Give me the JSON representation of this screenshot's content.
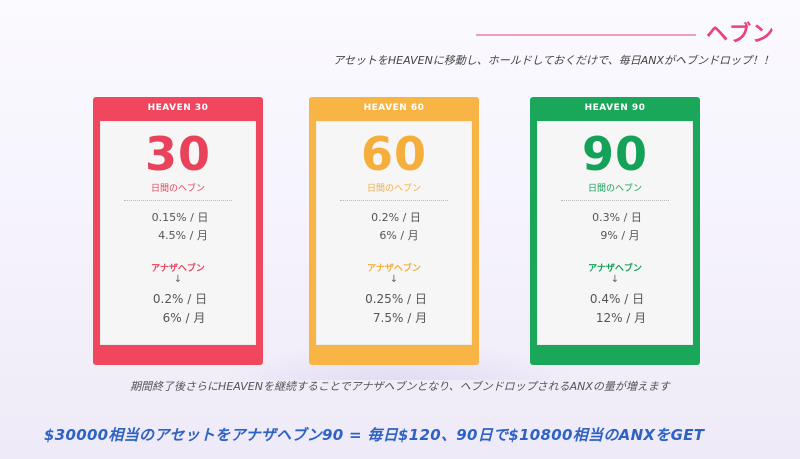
{
  "header": {
    "title": "ヘブン",
    "subtitle": "アセットをHEAVENに移動し、ホールドしておくだけで、毎日ANXがヘブンドロップ！！"
  },
  "colors": {
    "red": "#f0475f",
    "orange": "#f8b545",
    "green": "#1ba75a",
    "title_pink": "#e8437a",
    "cta_blue": "#2e63c4"
  },
  "plans": [
    {
      "name": "HEAVEN 30",
      "days": "30",
      "days_label": "日間のヘブン",
      "daily_rate": "0.15% / 日",
      "monthly_rate": "4.5% / 月",
      "another_label": "アナザヘブン",
      "arrow": "↓",
      "another_daily_rate": "0.2% / 日",
      "another_monthly_rate": "6% / 月"
    },
    {
      "name": "HEAVEN 60",
      "days": "60",
      "days_label": "日間のヘブン",
      "daily_rate": "0.2% / 日",
      "monthly_rate": "6% / 月",
      "another_label": "アナザヘブン",
      "arrow": "↓",
      "another_daily_rate": "0.25% / 日",
      "another_monthly_rate": "7.5% / 月"
    },
    {
      "name": "HEAVEN 90",
      "days": "90",
      "days_label": "日間のヘブン",
      "daily_rate": "0.3% / 日",
      "monthly_rate": "9% / 月",
      "another_label": "アナザヘブン",
      "arrow": "↓",
      "another_daily_rate": "0.4% / 日",
      "another_monthly_rate": "12% / 月"
    }
  ],
  "footer": {
    "note": "期間終了後さらにHEAVENを継続することでアナザヘブンとなり、ヘブンドロップされるANXの量が増えます",
    "cta": "$30000相当のアセットをアナザヘブン90 = 毎日$120、90日で$10800相当のANXをGET"
  }
}
